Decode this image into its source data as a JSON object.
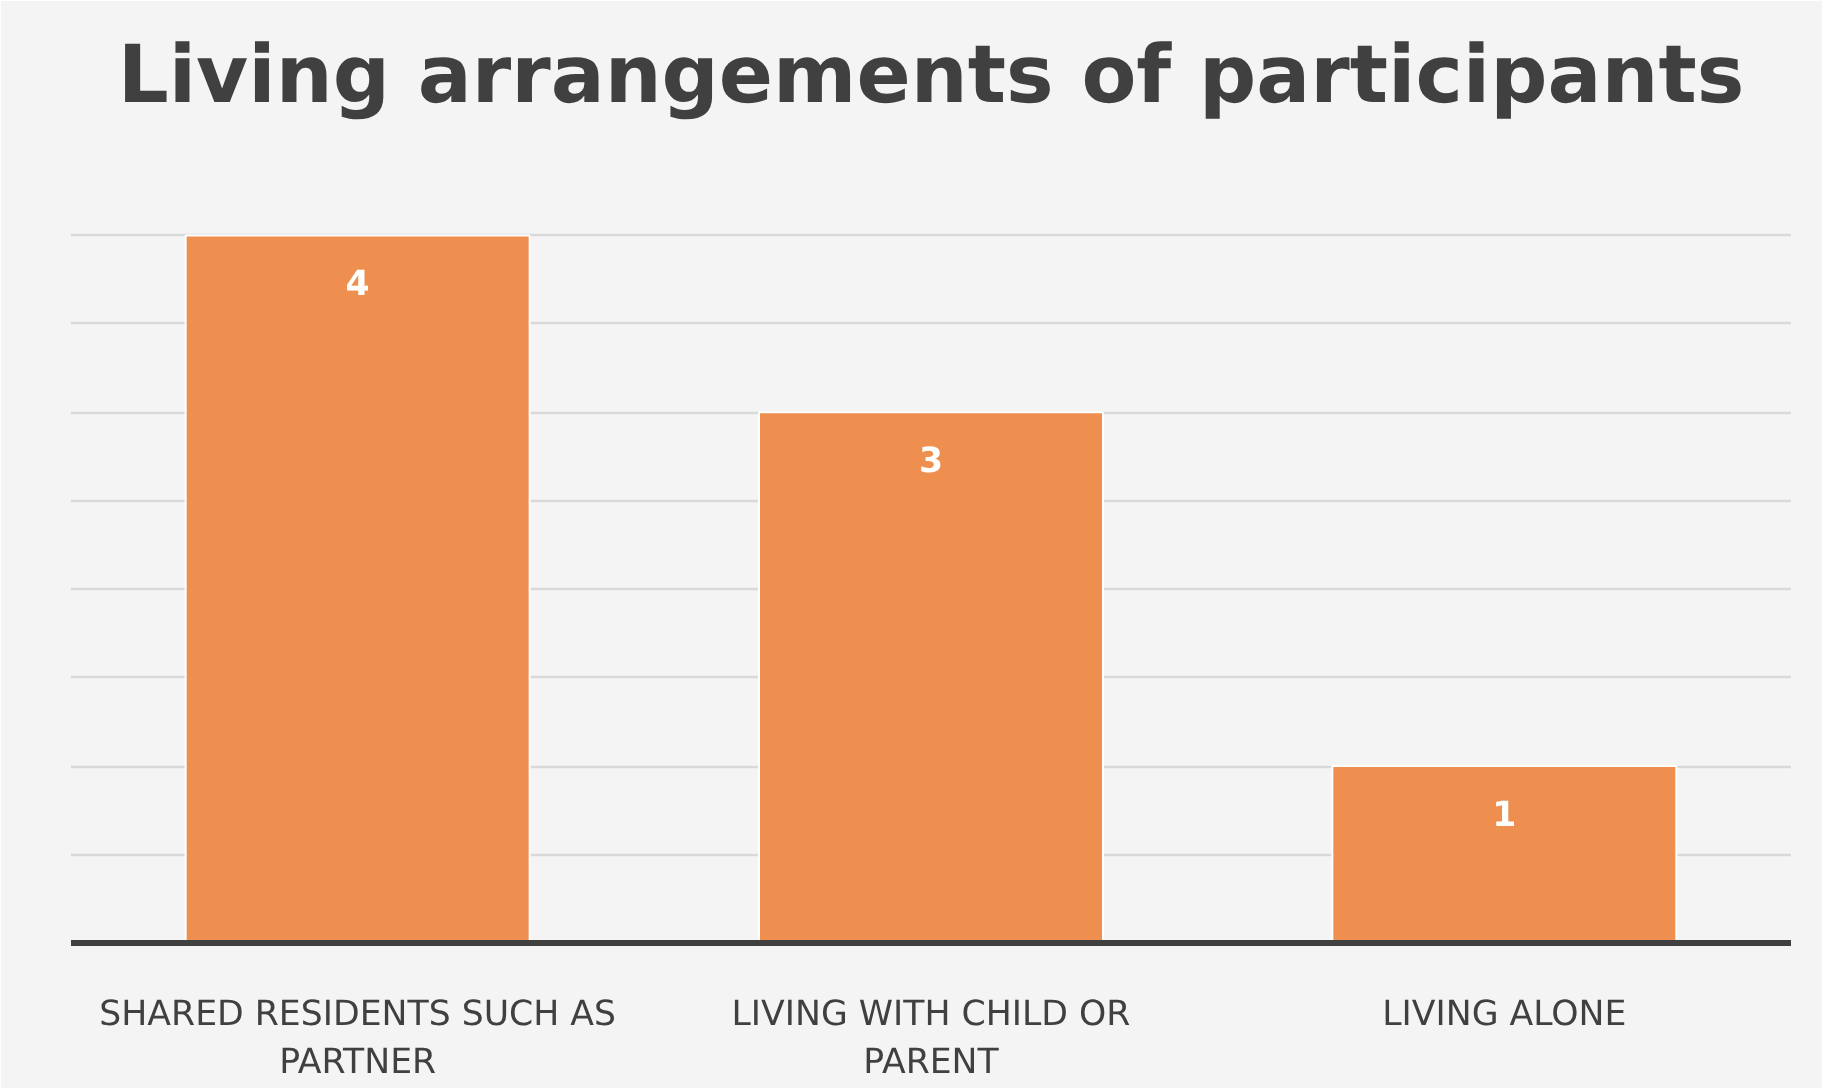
{
  "chart_data": {
    "type": "bar",
    "title": "Living arrangements of participants",
    "categories": [
      "SHARED RESIDENTS SUCH AS PARTNER",
      "LIVING WITH CHILD OR PARENT",
      "LIVING ALONE"
    ],
    "values": [
      4,
      3,
      1
    ],
    "color": "#ee8f4f",
    "ylim": [
      0,
      4.5
    ],
    "yticks": [
      {
        "value": 0,
        "label": null
      },
      {
        "value": 0.5,
        "label": null
      },
      {
        "value": 1,
        "label": null
      },
      {
        "value": 1.5,
        "label": null
      },
      {
        "value": 2,
        "label": null
      },
      {
        "value": 2.5,
        "label": null
      },
      {
        "value": 3,
        "label": null
      },
      {
        "value": 3.5,
        "label": null
      },
      {
        "value": 4,
        "label": null
      },
      {
        "value": 4.5,
        "label": null
      }
    ],
    "grid": "y",
    "tick_labels": "x",
    "data_labels": true
  }
}
